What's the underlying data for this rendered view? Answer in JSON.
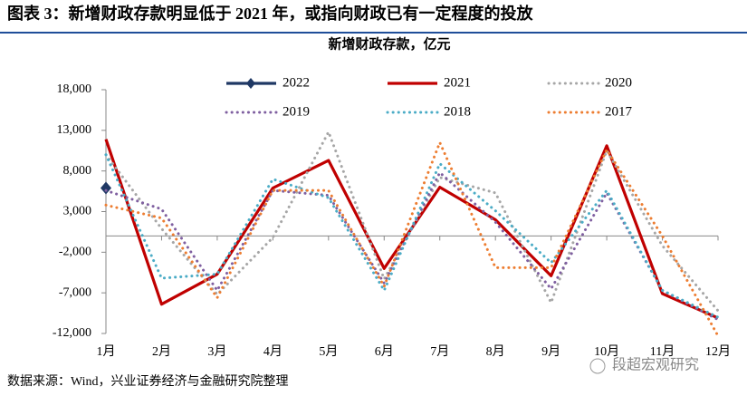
{
  "header": {
    "title": "图表 3：新增财政存款明显低于 2021 年，或指向财政已有一定程度的投放"
  },
  "chart_data": {
    "type": "line",
    "title": "新增财政存款，亿元",
    "categories": [
      "1月",
      "2月",
      "3月",
      "4月",
      "5月",
      "6月",
      "7月",
      "8月",
      "9月",
      "10月",
      "11月",
      "12月"
    ],
    "series": [
      {
        "name": "2022",
        "color": "#1f3864",
        "style": "solid",
        "marker": "diamond",
        "values": [
          5900,
          null,
          null,
          null,
          null,
          null,
          null,
          null,
          null,
          null,
          null,
          null
        ]
      },
      {
        "name": "2021",
        "color": "#c00000",
        "style": "solid",
        "values": [
          11900,
          -8400,
          -4700,
          5900,
          9300,
          -4000,
          6000,
          2000,
          -4900,
          11100,
          -7100,
          -10100
        ]
      },
      {
        "name": "2020",
        "color": "#a6a6a6",
        "style": "dotted",
        "values": [
          10000,
          900,
          -7200,
          -200,
          12800,
          -5300,
          7200,
          5300,
          -8200,
          10500,
          -1200,
          -9200
        ]
      },
      {
        "name": "2019",
        "color": "#7f5fa0",
        "style": "dotted",
        "values": [
          5600,
          3300,
          -6700,
          5600,
          5000,
          -5800,
          7800,
          1700,
          -6500,
          5300,
          -6700,
          -10300
        ]
      },
      {
        "name": "2018",
        "color": "#4bacc6",
        "style": "dotted",
        "values": [
          10000,
          -5200,
          -4700,
          7000,
          4700,
          -6700,
          8900,
          3100,
          -3300,
          5600,
          -6700,
          -10000
        ]
      },
      {
        "name": "2017",
        "color": "#ed7d31",
        "style": "dotted",
        "values": [
          3800,
          2200,
          -7600,
          5600,
          5600,
          -6200,
          11500,
          -3900,
          -3900,
          10600,
          0,
          -12300
        ]
      }
    ],
    "ylim": [
      -12000,
      18000
    ],
    "yticks": [
      {
        "value": -12000,
        "label": "-12,000"
      },
      {
        "value": -7000,
        "label": "-7,000"
      },
      {
        "value": -2000,
        "label": "-2,000"
      },
      {
        "value": 3000,
        "label": "3,000"
      },
      {
        "value": 8000,
        "label": "8,000"
      },
      {
        "value": 13000,
        "label": "13,000"
      },
      {
        "value": 18000,
        "label": "18,000"
      }
    ]
  },
  "footer": {
    "source": "数据来源：Wind，兴业证券经济与金融研究院整理",
    "watermark": "段超宏观研究"
  }
}
